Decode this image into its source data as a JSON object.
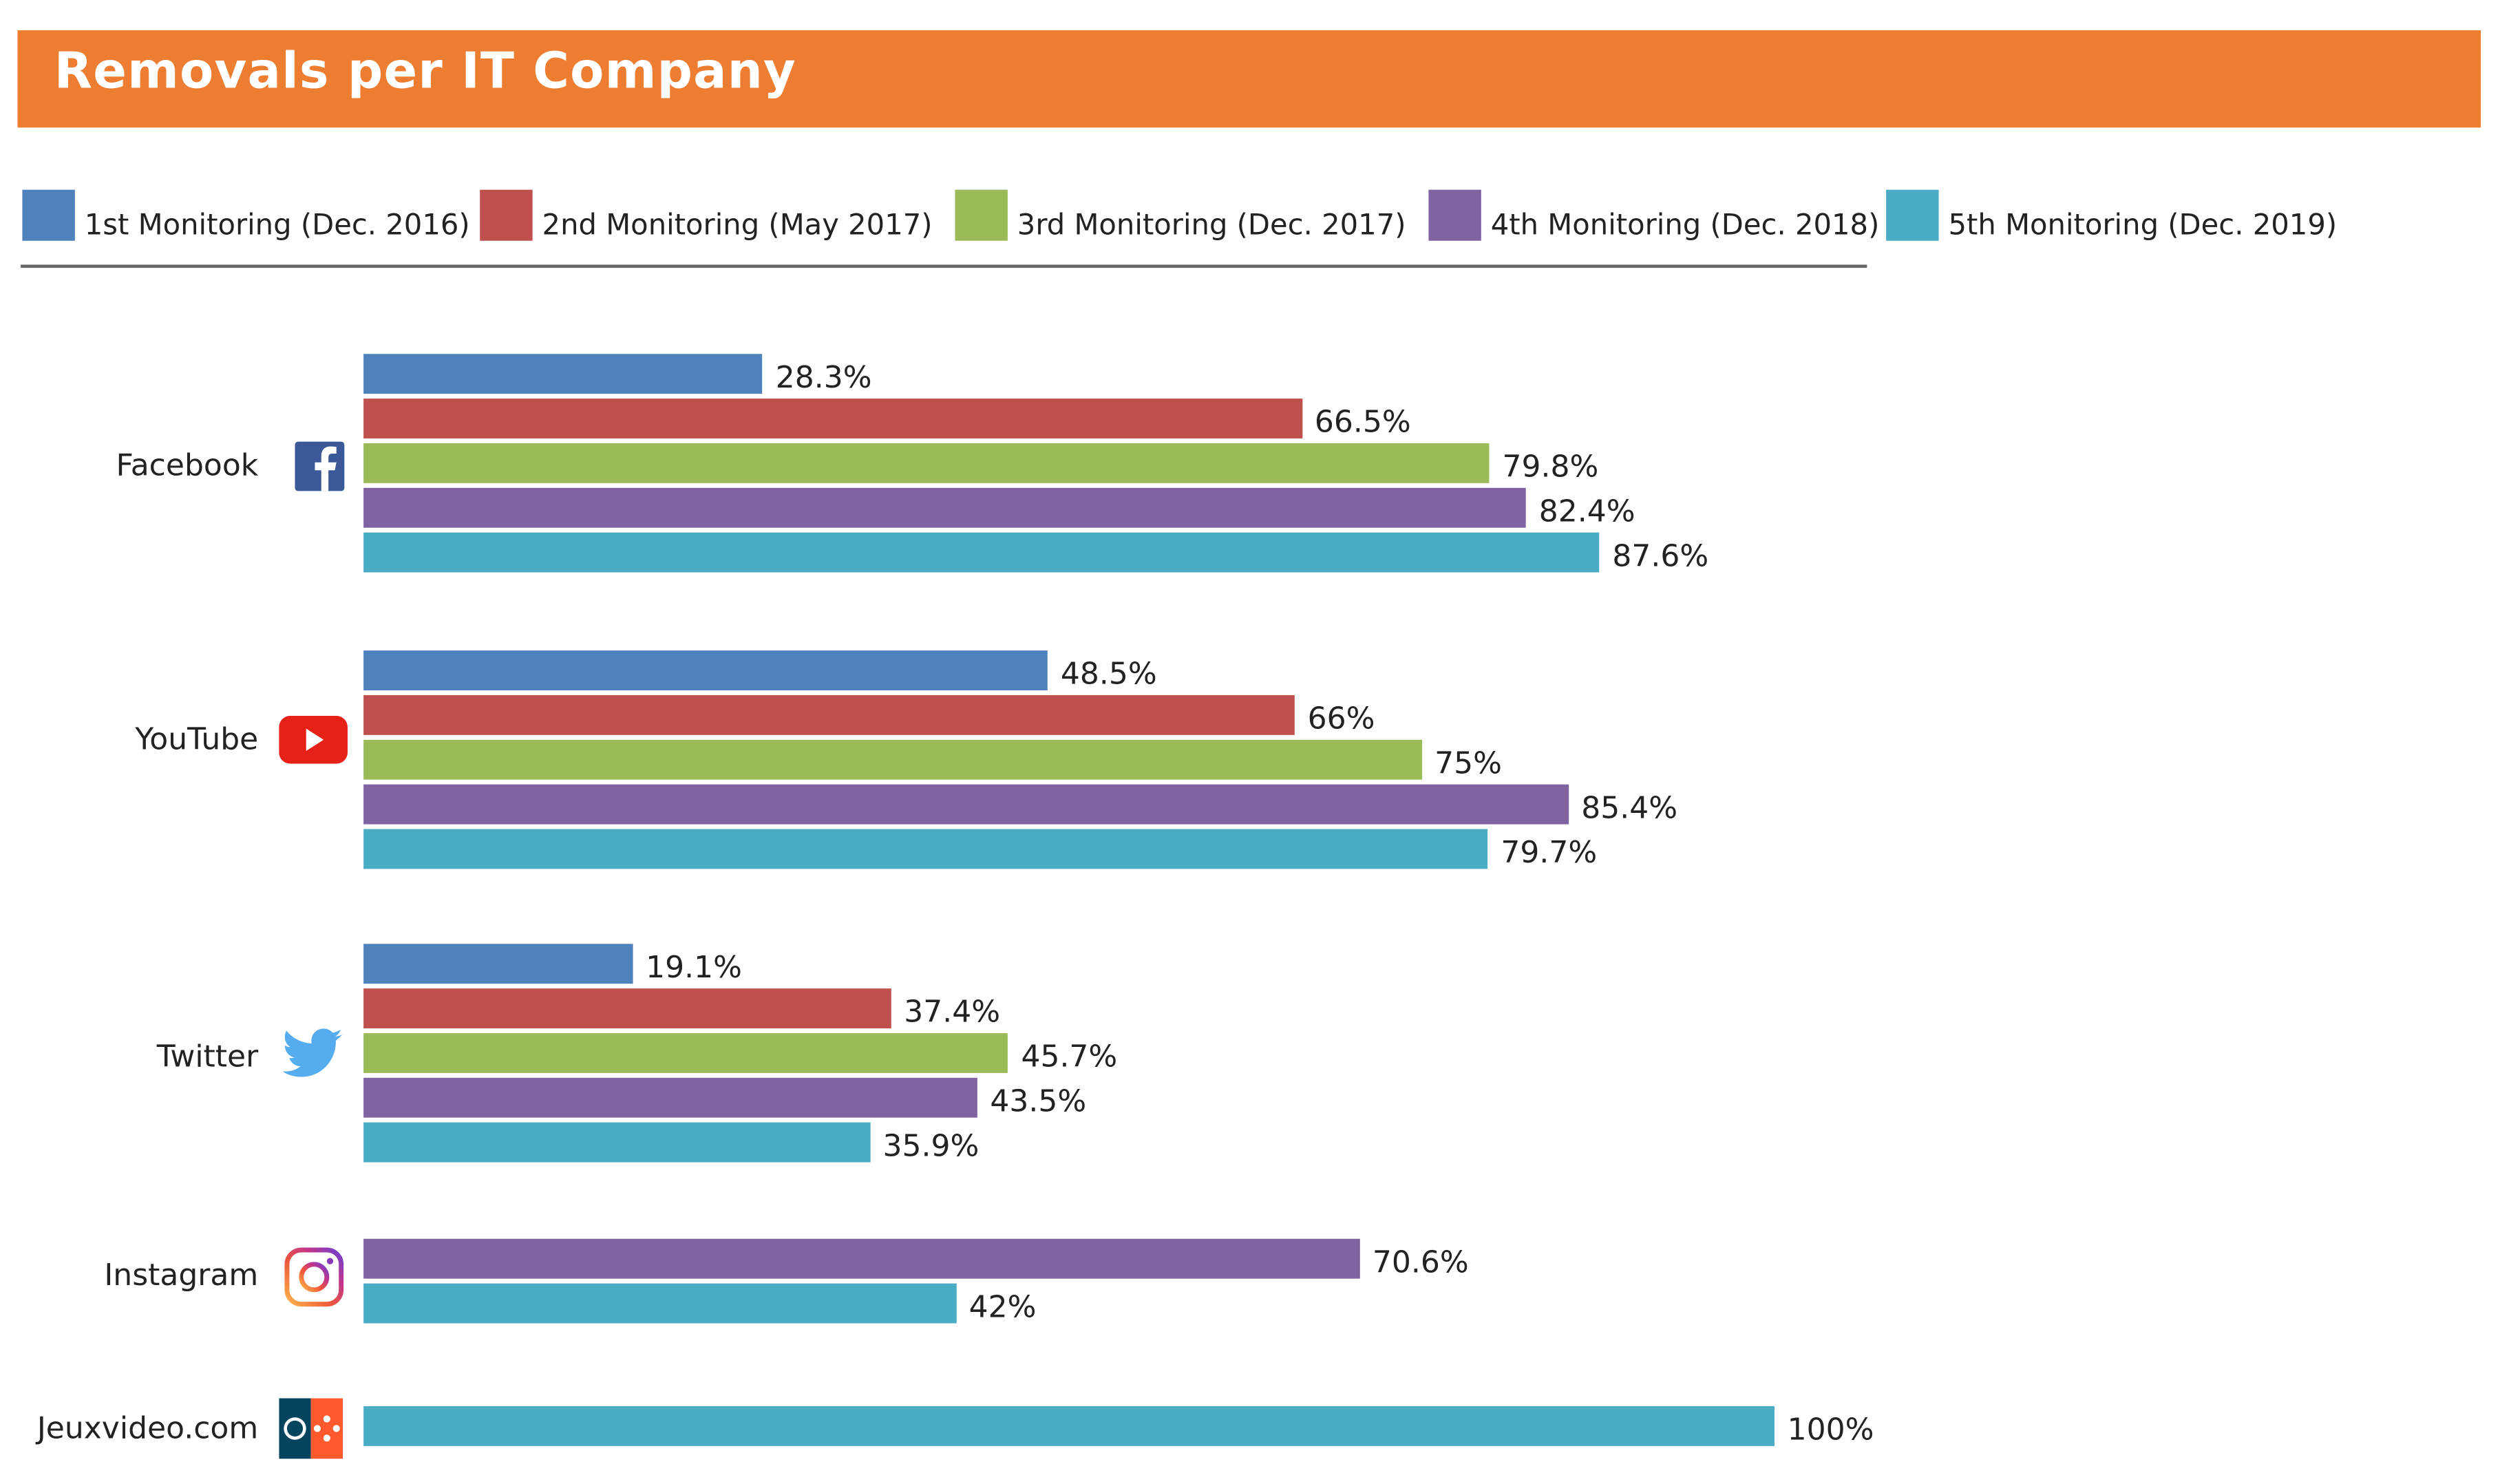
{
  "chart_data": {
    "type": "bar",
    "orientation": "horizontal",
    "title": "Removals per IT Company",
    "categories": [
      "Facebook",
      "YouTube",
      "Twitter",
      "Instagram",
      "Jeuxvideo.com"
    ],
    "category_icons": [
      "facebook-icon",
      "youtube-icon",
      "twitter-icon",
      "instagram-icon",
      "jeuxvideo-icon"
    ],
    "xlim": [
      0,
      100
    ],
    "grid": false,
    "legend_position": "top",
    "series": [
      {
        "name": "1st Monitoring (Dec. 2016)",
        "color": "#4f81bd",
        "values": [
          28.3,
          48.5,
          19.1,
          null,
          null
        ],
        "labels": [
          "28.3%",
          "48.5%",
          "19.1%",
          null,
          null
        ]
      },
      {
        "name": "2nd Monitoring (May 2017)",
        "color": "#c0504d",
        "values": [
          66.5,
          66,
          37.4,
          null,
          null
        ],
        "labels": [
          "66.5%",
          "66%",
          "37.4%",
          null,
          null
        ]
      },
      {
        "name": "3rd Monitoring (Dec. 2017)",
        "color": "#9bbb59",
        "values": [
          79.8,
          75,
          45.7,
          null,
          null
        ],
        "labels": [
          "79.8%",
          "75%",
          "45.7%",
          null,
          null
        ]
      },
      {
        "name": "4th Monitoring (Dec. 2018)",
        "color": "#8064a2",
        "values": [
          82.4,
          85.4,
          43.5,
          70.6,
          null
        ],
        "labels": [
          "82.4%",
          "85.4%",
          "43.5%",
          "70.6%",
          null
        ]
      },
      {
        "name": "5th Monitoring (Dec. 2019)",
        "color": "#4bacc6",
        "values": [
          87.6,
          79.7,
          35.9,
          42,
          100
        ],
        "labels": [
          "87.6%",
          "79.7%",
          "35.9%",
          "42%",
          "100%"
        ]
      }
    ]
  },
  "header_color": "#ed7d31"
}
